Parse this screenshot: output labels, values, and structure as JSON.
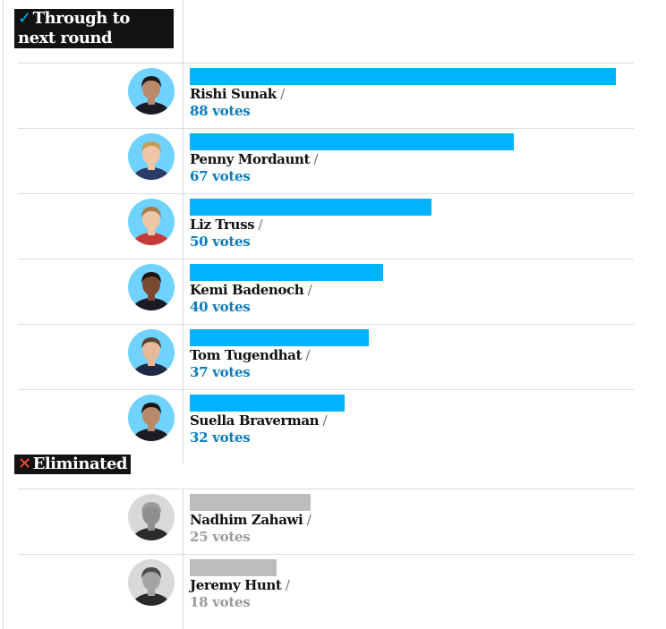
{
  "sections": {
    "through": {
      "label": "Through to next round",
      "mark": "✓",
      "mark_color": "#00b2ff"
    },
    "eliminated": {
      "label": "Eliminated",
      "mark": "✕",
      "mark_color": "#ff4e36"
    }
  },
  "colors": {
    "through_bar": "#00b2ff",
    "eliminated_bar": "#bdbdbd",
    "votes_through": "#0a7bbd",
    "votes_eliminated": "#9a9a9a"
  },
  "slash": "/",
  "candidates": [
    {
      "name": "Rishi Sunak",
      "votes_label": "88 votes",
      "votes": 88,
      "status": "through",
      "avatar_bg": "#6fd2ff",
      "skin": "#b98a6a",
      "hair": "#1f1a17",
      "clothes": "#1b1b25"
    },
    {
      "name": "Penny Mordaunt",
      "votes_label": "67 votes",
      "votes": 67,
      "status": "through",
      "avatar_bg": "#6fd2ff",
      "skin": "#efc6a6",
      "hair": "#c79a55",
      "clothes": "#2b3b6a"
    },
    {
      "name": "Liz Truss",
      "votes_label": "50 votes",
      "votes": 50,
      "status": "through",
      "avatar_bg": "#6fd2ff",
      "skin": "#efc6a6",
      "hair": "#a77b4a",
      "clothes": "#c63a3a"
    },
    {
      "name": "Kemi Badenoch",
      "votes_label": "40 votes",
      "votes": 40,
      "status": "through",
      "avatar_bg": "#6fd2ff",
      "skin": "#7a4a30",
      "hair": "#1a1412",
      "clothes": "#1b1b25"
    },
    {
      "name": "Tom Tugendhat",
      "votes_label": "37 votes",
      "votes": 37,
      "status": "through",
      "avatar_bg": "#6fd2ff",
      "skin": "#e8b89a",
      "hair": "#5a4535",
      "clothes": "#1e2a44"
    },
    {
      "name": "Suella Braverman",
      "votes_label": "32 votes",
      "votes": 32,
      "status": "through",
      "avatar_bg": "#6fd2ff",
      "skin": "#b98a6a",
      "hair": "#1a1412",
      "clothes": "#1b1b25"
    },
    {
      "name": "Nadhim Zahawi",
      "votes_label": "25 votes",
      "votes": 25,
      "status": "eliminated",
      "avatar_bg": "#d9d9d9",
      "skin": "#8f8f8f",
      "hair": "#9c9c9c",
      "clothes": "#2a2a2a"
    },
    {
      "name": "Jeremy Hunt",
      "votes_label": "18 votes",
      "votes": 18,
      "status": "eliminated",
      "avatar_bg": "#d9d9d9",
      "skin": "#a3a3a3",
      "hair": "#4a4a4a",
      "clothes": "#2a2a2a"
    }
  ],
  "chart_data": {
    "type": "bar",
    "orientation": "horizontal",
    "categories": [
      "Rishi Sunak",
      "Penny Mordaunt",
      "Liz Truss",
      "Kemi Badenoch",
      "Tom Tugendhat",
      "Suella Braverman",
      "Nadhim Zahawi",
      "Jeremy Hunt"
    ],
    "values": [
      88,
      67,
      50,
      40,
      37,
      32,
      25,
      18
    ],
    "groups": [
      "Through to next round",
      "Through to next round",
      "Through to next round",
      "Through to next round",
      "Through to next round",
      "Through to next round",
      "Eliminated",
      "Eliminated"
    ],
    "xlim": [
      0,
      88
    ]
  }
}
